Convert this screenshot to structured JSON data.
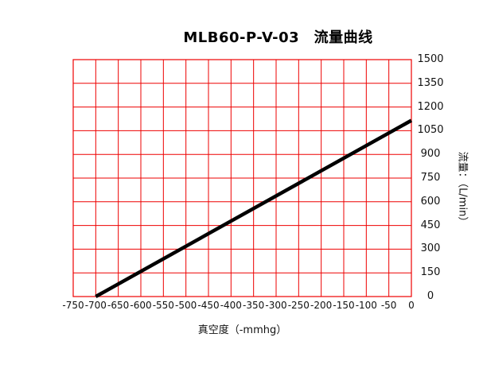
{
  "title": "MLB60-P-V-03　流量曲线",
  "chart_data": {
    "type": "line",
    "title": "MLB60-P-V-03　流量曲线",
    "xlabel": "真空度（-mmhg）",
    "ylabel": "流量：（L/min）",
    "xlim": [
      -750,
      0
    ],
    "ylim": [
      0,
      1500
    ],
    "x_ticks": [
      -750,
      -700,
      -650,
      -600,
      -550,
      -500,
      -450,
      -400,
      -350,
      -300,
      -250,
      -200,
      -150,
      -100,
      -50,
      0
    ],
    "y_ticks": [
      0,
      150,
      300,
      450,
      600,
      750,
      900,
      1050,
      1200,
      1350,
      1500
    ],
    "grid": "on",
    "legend": "none",
    "y_axis_side": "right",
    "grid_color": "#ee0000",
    "axis_color": "#ee0000",
    "line_color": "#000000",
    "line_width": 4.5,
    "series": [
      {
        "name": "流量",
        "points": [
          [
            -700,
            0
          ],
          [
            0,
            1115
          ]
        ]
      }
    ]
  }
}
